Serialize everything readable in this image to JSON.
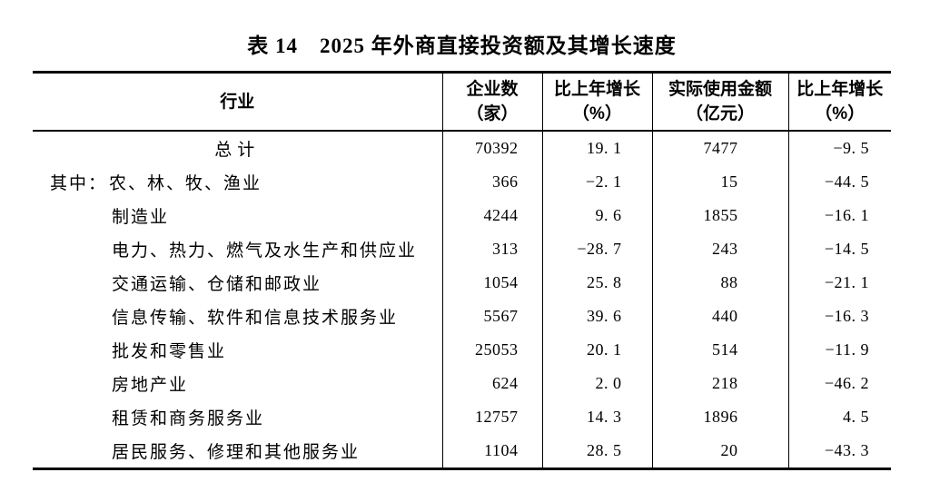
{
  "title": "表 14　2025 年外商直接投资额及其增长速度",
  "colors": {
    "text": "#000000",
    "background": "#ffffff",
    "border": "#000000"
  },
  "table": {
    "columns": [
      {
        "label": "行业",
        "sub": ""
      },
      {
        "label": "企业数",
        "sub": "（家）"
      },
      {
        "label": "比上年增长",
        "sub": "（%）"
      },
      {
        "label": "实际使用金额",
        "sub": "（亿元）"
      },
      {
        "label": "比上年增长",
        "sub": "（%）"
      }
    ],
    "rows": [
      {
        "prefix": "",
        "industry": "总计",
        "enterprises": "70392",
        "growth_enterprises": "19. 1",
        "amount": "7477",
        "growth_amount": "−9. 5"
      },
      {
        "prefix": "其中：",
        "industry": "农、林、牧、渔业",
        "enterprises": "366",
        "growth_enterprises": "−2. 1",
        "amount": "15",
        "growth_amount": "−44. 5"
      },
      {
        "prefix": "",
        "industry": "制造业",
        "enterprises": "4244",
        "growth_enterprises": "9. 6",
        "amount": "1855",
        "growth_amount": "−16. 1"
      },
      {
        "prefix": "",
        "industry": "电力、热力、燃气及水生产和供应业",
        "enterprises": "313",
        "growth_enterprises": "−28. 7",
        "amount": "243",
        "growth_amount": "−14. 5"
      },
      {
        "prefix": "",
        "industry": "交通运输、仓储和邮政业",
        "enterprises": "1054",
        "growth_enterprises": "25. 8",
        "amount": "88",
        "growth_amount": "−21. 1"
      },
      {
        "prefix": "",
        "industry": "信息传输、软件和信息技术服务业",
        "enterprises": "5567",
        "growth_enterprises": "39. 6",
        "amount": "440",
        "growth_amount": "−16. 3"
      },
      {
        "prefix": "",
        "industry": "批发和零售业",
        "enterprises": "25053",
        "growth_enterprises": "20. 1",
        "amount": "514",
        "growth_amount": "−11. 9"
      },
      {
        "prefix": "",
        "industry": "房地产业",
        "enterprises": "624",
        "growth_enterprises": "2. 0",
        "amount": "218",
        "growth_amount": "−46. 2"
      },
      {
        "prefix": "",
        "industry": "租赁和商务服务业",
        "enterprises": "12757",
        "growth_enterprises": "14. 3",
        "amount": "1896",
        "growth_amount": "4. 5"
      },
      {
        "prefix": "",
        "industry": "居民服务、修理和其他服务业",
        "enterprises": "1104",
        "growth_enterprises": "28. 5",
        "amount": "20",
        "growth_amount": "−43. 3"
      }
    ]
  }
}
